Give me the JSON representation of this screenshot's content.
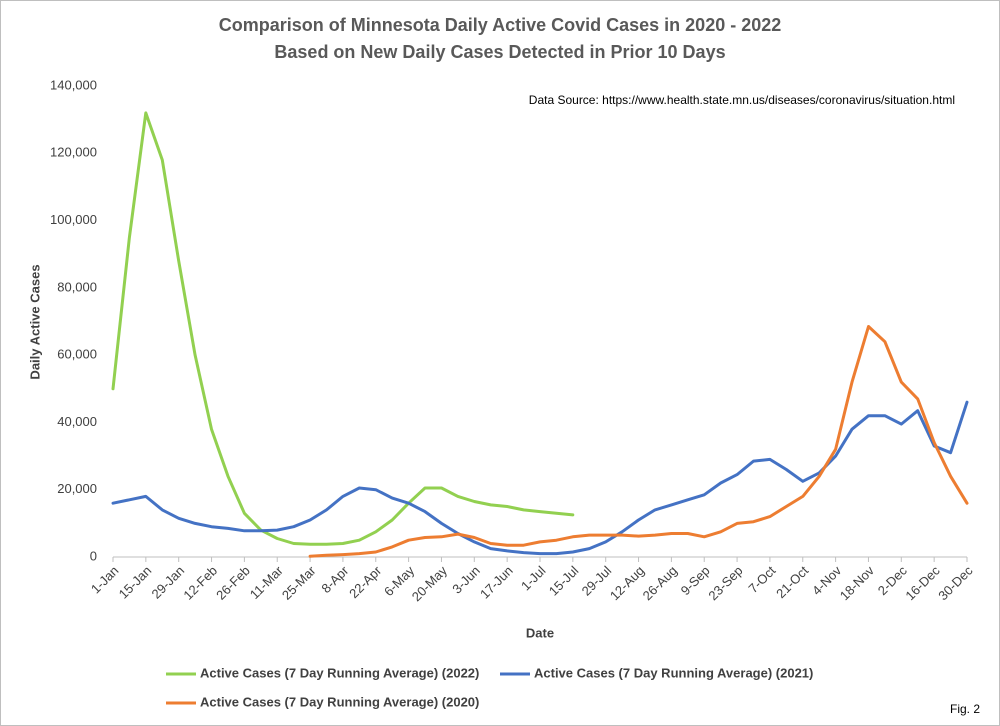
{
  "chart_data": {
    "type": "line",
    "title": "Comparison of Minnesota Daily Active Covid Cases in 2020 - 2022",
    "subtitle": "Based on New Daily Cases Detected in Prior 10 Days",
    "annotation": "Data Source: https://www.health.state.mn.us/diseases/coronavirus/situation.html",
    "figure_label": "Fig. 2",
    "x_label": "Date",
    "y_label": "Daily Active Cases",
    "legend": "bottom",
    "grid": false,
    "xlim": [
      0,
      364
    ],
    "xticks": [
      {
        "value": 0,
        "label": "1-Jan"
      },
      {
        "value": 14,
        "label": "15-Jan"
      },
      {
        "value": 28,
        "label": "29-Jan"
      },
      {
        "value": 42,
        "label": "12-Feb"
      },
      {
        "value": 56,
        "label": "26-Feb"
      },
      {
        "value": 70,
        "label": "11-Mar"
      },
      {
        "value": 84,
        "label": "25-Mar"
      },
      {
        "value": 98,
        "label": "8-Apr"
      },
      {
        "value": 112,
        "label": "22-Apr"
      },
      {
        "value": 126,
        "label": "6-May"
      },
      {
        "value": 140,
        "label": "20-May"
      },
      {
        "value": 154,
        "label": "3-Jun"
      },
      {
        "value": 168,
        "label": "17-Jun"
      },
      {
        "value": 182,
        "label": "1-Jul"
      },
      {
        "value": 196,
        "label": "15-Jul"
      },
      {
        "value": 210,
        "label": "29-Jul"
      },
      {
        "value": 224,
        "label": "12-Aug"
      },
      {
        "value": 238,
        "label": "26-Aug"
      },
      {
        "value": 252,
        "label": "9-Sep"
      },
      {
        "value": 266,
        "label": "23-Sep"
      },
      {
        "value": 280,
        "label": "7-Oct"
      },
      {
        "value": 294,
        "label": "21-Oct"
      },
      {
        "value": 308,
        "label": "4-Nov"
      },
      {
        "value": 322,
        "label": "18-Nov"
      },
      {
        "value": 336,
        "label": "2-Dec"
      },
      {
        "value": 350,
        "label": "16-Dec"
      },
      {
        "value": 364,
        "label": "30-Dec"
      }
    ],
    "ylim": [
      0,
      140000
    ],
    "yticks": [
      0,
      {
        "value": 20000,
        "label": "20,000"
      },
      {
        "value": 40000,
        "label": "40,000"
      },
      {
        "value": 60000,
        "label": "60,000"
      },
      {
        "value": 80000,
        "label": "80,000"
      },
      {
        "value": 100000,
        "label": "100,000"
      },
      {
        "value": 120000,
        "label": "120,000"
      },
      {
        "value": 140000,
        "label": "140,000"
      }
    ],
    "x": [
      0,
      7,
      14,
      21,
      28,
      35,
      42,
      49,
      56,
      63,
      70,
      77,
      84,
      91,
      98,
      105,
      112,
      119,
      126,
      133,
      140,
      147,
      154,
      161,
      168,
      175,
      182,
      189,
      196,
      203,
      210,
      217,
      224,
      231,
      238,
      245,
      252,
      259,
      266,
      273,
      280,
      287,
      294,
      301,
      308,
      315,
      322,
      329,
      336,
      343,
      350,
      357,
      364
    ],
    "series": [
      {
        "name": "Active Cases (7 Day Running Average) (2022)",
        "color": "#92d050",
        "values": [
          50000,
          95000,
          132000,
          118000,
          88000,
          60000,
          38000,
          24000,
          13000,
          8000,
          5500,
          4000,
          3800,
          3800,
          4000,
          5000,
          7500,
          11000,
          16000,
          20500,
          20500,
          18000,
          16500,
          15500,
          15000,
          14000,
          13500,
          13000,
          12500,
          null,
          null,
          null,
          null,
          null,
          null,
          null,
          null,
          null,
          null,
          null,
          null,
          null,
          null,
          null,
          null,
          null,
          null,
          null,
          null,
          null,
          null,
          null,
          null
        ]
      },
      {
        "name": "Active Cases (7 Day Running Average)  (2021)",
        "color": "#4472c4",
        "values": [
          16000,
          17000,
          18000,
          14000,
          11500,
          10000,
          9000,
          8500,
          7800,
          7800,
          8000,
          9000,
          11000,
          14000,
          18000,
          20500,
          20000,
          17500,
          16000,
          13500,
          10000,
          7000,
          4500,
          2500,
          1800,
          1300,
          1000,
          1000,
          1500,
          2500,
          4500,
          7500,
          11000,
          14000,
          15500,
          17000,
          18500,
          22000,
          24500,
          28500,
          29000,
          26000,
          22500,
          25000,
          30000,
          38000,
          42000,
          42000,
          39500,
          43500,
          33000,
          31000,
          46000
        ]
      },
      {
        "name": "Active Cases (7 Day Running Average)  (2020)",
        "color": "#ed7d31",
        "values": [
          null,
          null,
          null,
          null,
          null,
          null,
          null,
          null,
          null,
          null,
          null,
          null,
          200,
          500,
          700,
          1000,
          1500,
          3000,
          5000,
          5800,
          6000,
          6800,
          5800,
          4000,
          3500,
          3500,
          4500,
          5000,
          6000,
          6500,
          6500,
          6500,
          6200,
          6500,
          7000,
          7000,
          6000,
          7500,
          10000,
          10500,
          12000,
          15000,
          18000,
          24000,
          32000,
          52000,
          68500,
          64000,
          52000,
          47000,
          34000,
          24000,
          16000
        ]
      }
    ]
  }
}
